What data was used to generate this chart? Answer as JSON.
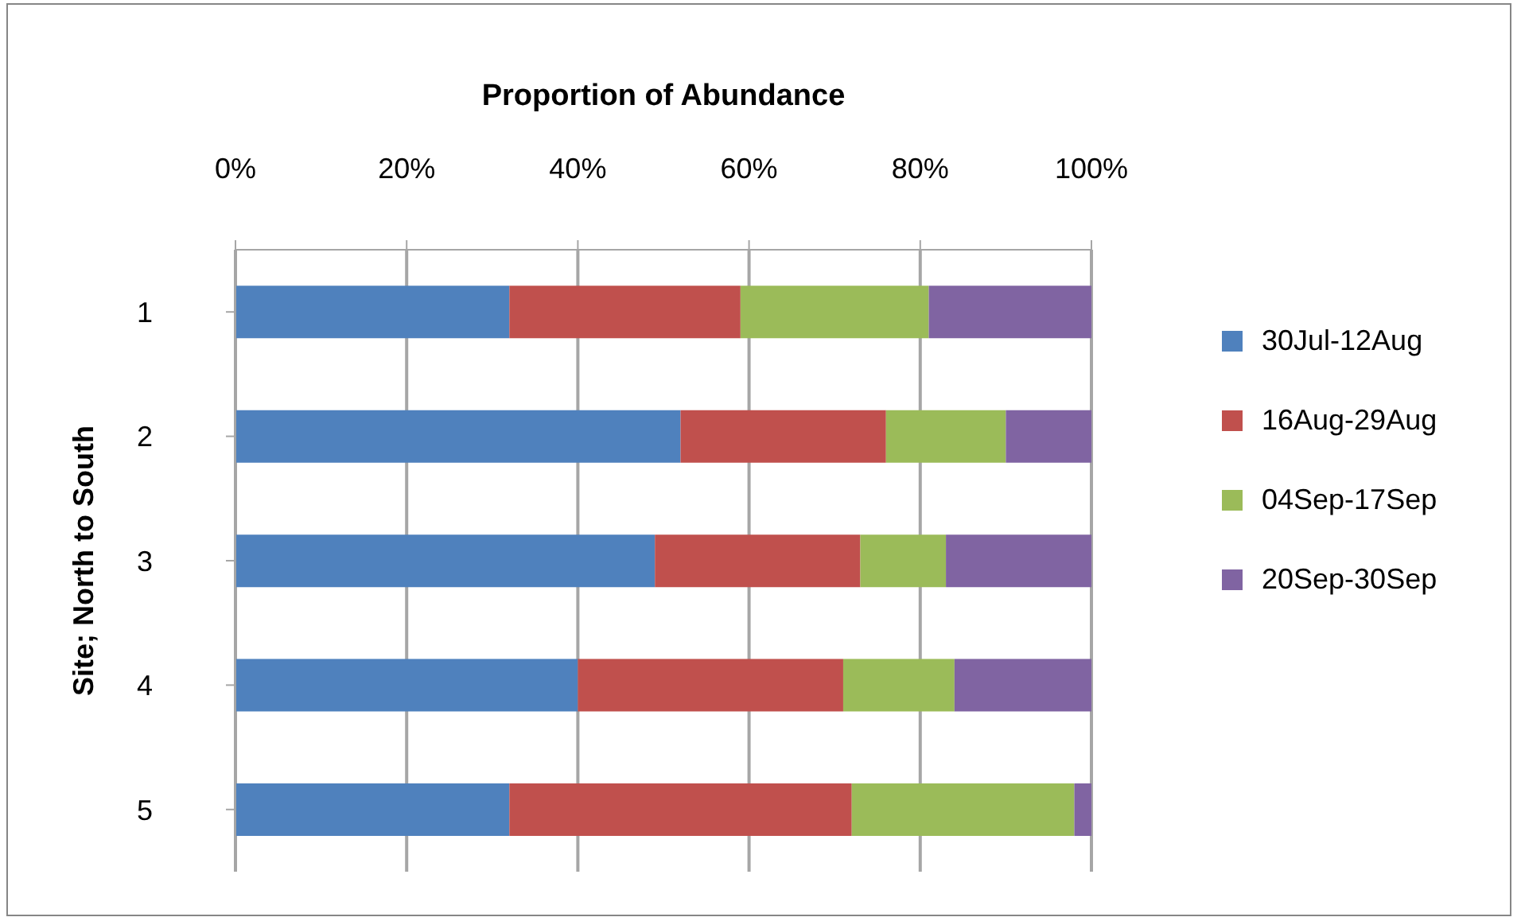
{
  "chart_data": {
    "type": "bar",
    "orientation": "horizontal",
    "stacked": true,
    "title": "Proportion of Abundance",
    "ylabel": "Site; North to South",
    "categories": [
      "1",
      "2",
      "3",
      "4",
      "5"
    ],
    "series": [
      {
        "name": "30Jul-12Aug",
        "color": "#4f81bd",
        "values": [
          32,
          52,
          49,
          40,
          32
        ]
      },
      {
        "name": "16Aug-29Aug",
        "color": "#c0504d",
        "values": [
          27,
          24,
          24,
          31,
          40
        ]
      },
      {
        "name": "04Sep-17Sep",
        "color": "#9bbb59",
        "values": [
          22,
          14,
          10,
          13,
          26
        ]
      },
      {
        "name": "20Sep-30Sep",
        "color": "#8064a2",
        "values": [
          19,
          10,
          17,
          16,
          2
        ]
      }
    ],
    "xlim": [
      0,
      100
    ],
    "xticks": [
      {
        "value": 0,
        "label": "0%"
      },
      {
        "value": 20,
        "label": "20%"
      },
      {
        "value": 40,
        "label": "40%"
      },
      {
        "value": 60,
        "label": "60%"
      },
      {
        "value": 80,
        "label": "80%"
      },
      {
        "value": 100,
        "label": "100%"
      }
    ],
    "grid": "x",
    "legend": "right"
  }
}
